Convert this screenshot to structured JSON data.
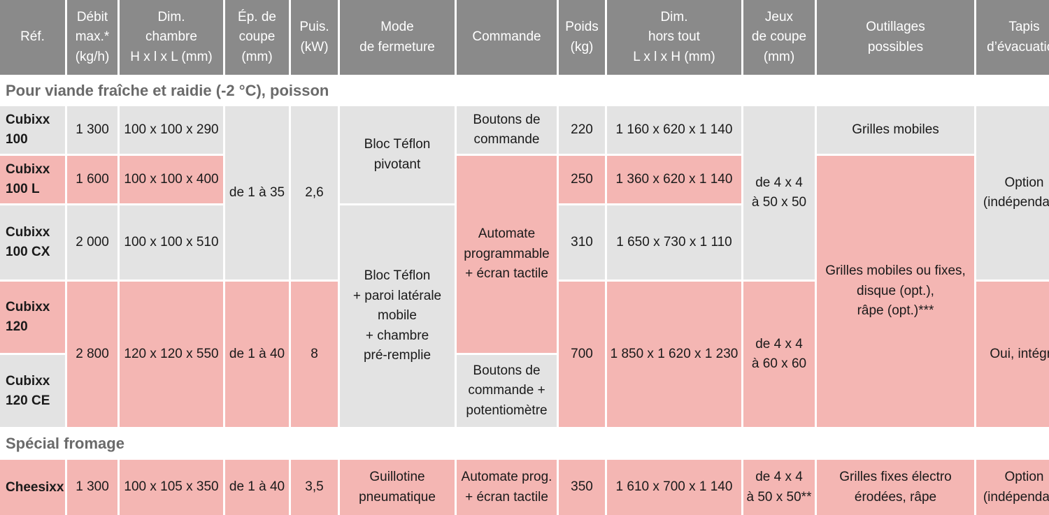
{
  "headers": [
    "Réf.",
    "Débit\nmax.*\n(kg/h)",
    "Dim.\nchambre\nH x l x L (mm)",
    "Ép. de\ncoupe\n(mm)",
    "Puis.\n(kW)",
    "Mode\nde fermeture",
    "Commande",
    "Poids\n(kg)",
    "Dim.\nhors tout\nL x l x H (mm)",
    "Jeux\nde coupe\n(mm)",
    "Outillages\npossibles",
    "Tapis\nd’évacuation"
  ],
  "section_meat": "Pour viande fraîche et raidie (-2 °C), poisson",
  "section_cheese": "Spécial fromage",
  "rows": {
    "c100": {
      "ref": "Cubixx\n100",
      "debit": "1 300",
      "dim": "100 x 100 x 290",
      "poids": "220",
      "hors": "1 160 x 620 x 1 140"
    },
    "c100l": {
      "ref": "Cubixx\n100 L",
      "debit": "1 600",
      "dim": "100 x 100 x 400",
      "poids": "250",
      "hors": "1 360 x 620 x 1 140"
    },
    "c100cx": {
      "ref": "Cubixx\n100 CX",
      "debit": "2 000",
      "dim": "100 x 100 x 510",
      "poids": "310",
      "hors": "1 650 x 730 x 1 110"
    },
    "c120": {
      "ref": "Cubixx\n120"
    },
    "c120ce": {
      "ref": "Cubixx\n120 CE"
    },
    "c120group": {
      "debit": "2 800",
      "dim": "120 x 120 x 550",
      "ep": "de 1 à 40",
      "puis": "8",
      "poids": "700",
      "hors": "1 850 x 1 620 x 1 230",
      "jeux": "de 4 x 4\nà 60 x 60",
      "tapis": "Oui, intégré"
    }
  },
  "merged": {
    "ep_100": "de 1 à 35",
    "puis_100": "2,6",
    "fermeture_1": "Bloc Téflon\npivotant",
    "fermeture_2": "Bloc Téflon\n+ paroi latérale\nmobile\n+ chambre\npré-remplie",
    "cmd_boutons": "Boutons de\ncommande",
    "cmd_automate": "Automate\nprogrammable\n+ écran tactile",
    "cmd_potentio": "Boutons de\ncommande +\npotentiomètre",
    "jeux_100": "de 4 x 4\nà 50 x 50",
    "outil_1": "Grilles mobiles",
    "outil_2": "Grilles mobiles ou fixes,\ndisque (opt.),\nrâpe (opt.)***",
    "tapis_100": "Option\n(indépendant)"
  },
  "cheese": {
    "ref": "Cheesixx",
    "debit": "1 300",
    "dim": "100 x 105 x 350",
    "ep": "de 1 à 40",
    "puis": "3,5",
    "fermeture": "Guillotine\npneumatique",
    "cmd": "Automate prog.\n+ écran tactile",
    "poids": "350",
    "hors": "1 610 x 700 x 1 140",
    "jeux": "de 4 x 4\nà 50 x 50**",
    "outil": "Grilles fixes électro\nérodées, râpe",
    "tapis": "Option\n(indépendant)"
  }
}
